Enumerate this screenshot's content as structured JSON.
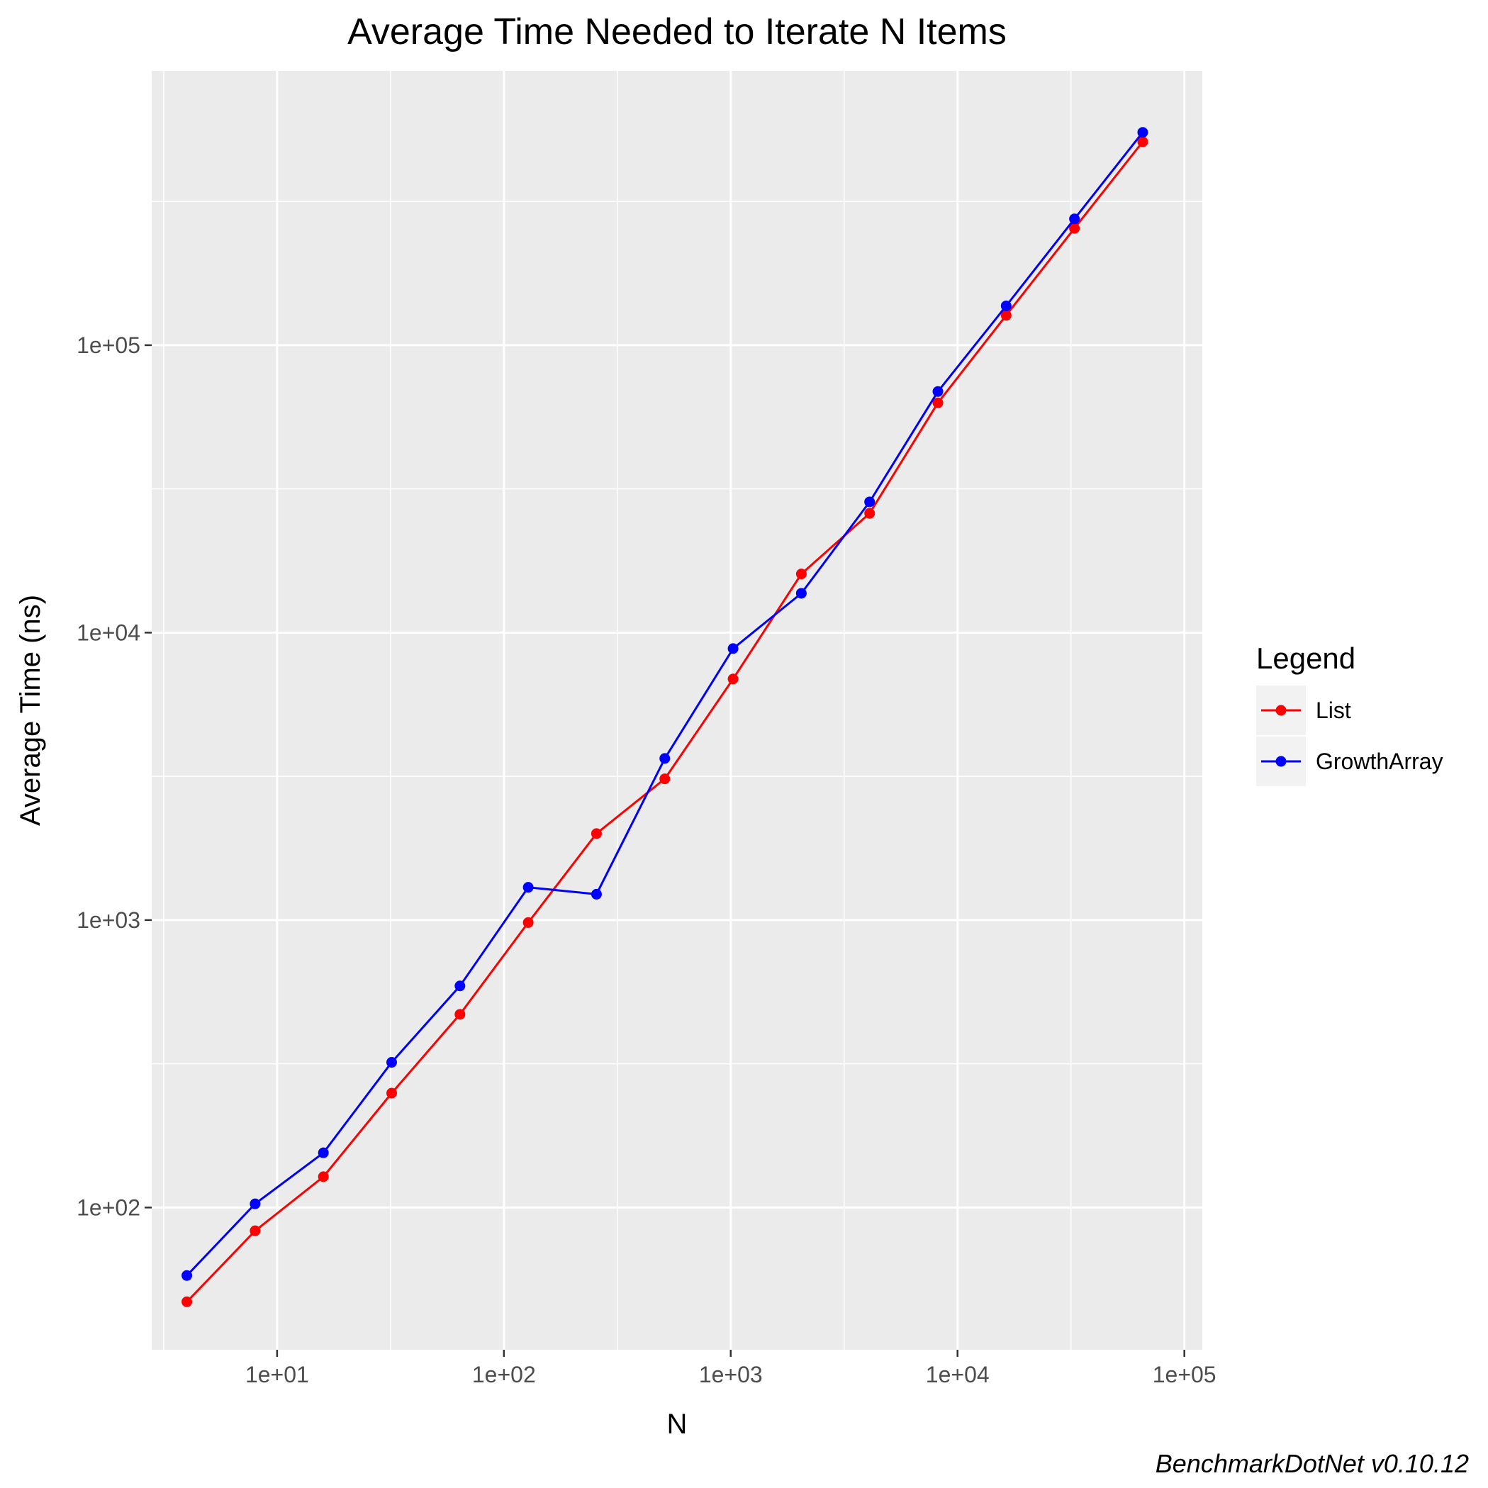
{
  "chart_data": {
    "type": "line",
    "title": "Average Time Needed to Iterate N Items",
    "xlabel": "N",
    "ylabel": "Average Time (ns)",
    "x_scale": "log10",
    "y_scale": "log10",
    "xlim": [
      2.8,
      120000
    ],
    "ylim": [
      32,
      900000
    ],
    "x_ticks": [
      10,
      100,
      1000,
      10000,
      100000
    ],
    "x_tick_labels": [
      "1e+01",
      "1e+02",
      "1e+03",
      "1e+04",
      "1e+05"
    ],
    "y_ticks": [
      100,
      1000,
      10000,
      100000
    ],
    "y_tick_labels": [
      "1e+02",
      "1e+03",
      "1e+04",
      "1e+05"
    ],
    "grid": true,
    "legend_title": "Legend",
    "legend_position": "right",
    "x": [
      4,
      8,
      16,
      32,
      64,
      128,
      256,
      512,
      1024,
      2048,
      4096,
      8192,
      16384,
      32768,
      65536
    ],
    "series": [
      {
        "name": "List",
        "color": "#ff0000",
        "values": [
          47,
          83,
          128,
          250,
          470,
          980,
          2000,
          3100,
          6900,
          16000,
          26000,
          63000,
          127000,
          255000,
          510000
        ]
      },
      {
        "name": "GrowthArray",
        "color": "#0000ff",
        "values": [
          58,
          103,
          155,
          320,
          590,
          1300,
          1230,
          3650,
          8800,
          13700,
          28500,
          69000,
          137000,
          275000,
          550000
        ]
      }
    ],
    "caption": "BenchmarkDotNet v0.10.12"
  }
}
